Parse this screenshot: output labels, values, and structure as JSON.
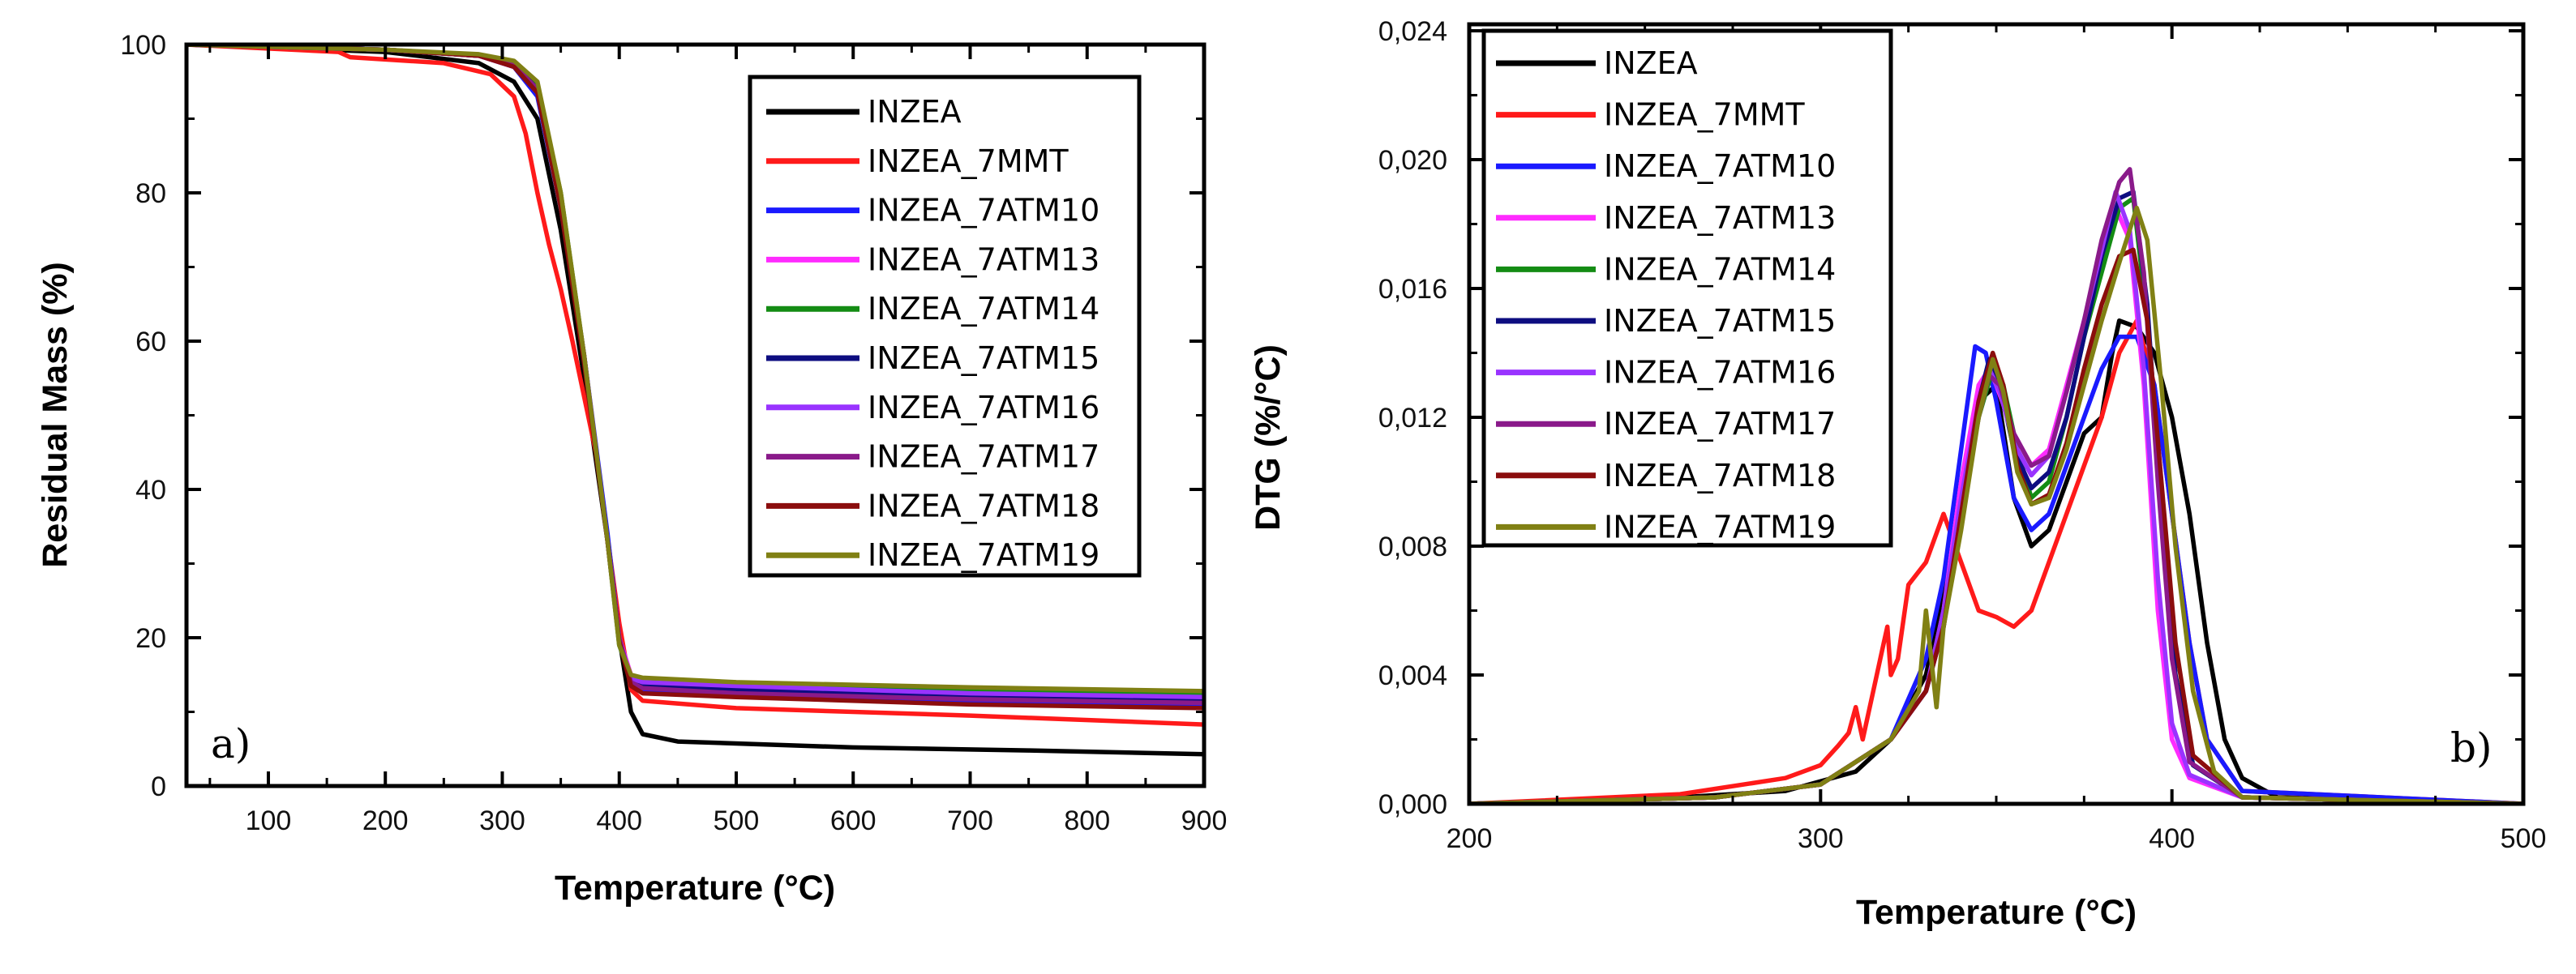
{
  "chart_data": [
    {
      "type": "line",
      "panel_label": "a)",
      "xlabel": "Temperature (°C)",
      "ylabel": "Residual Mass (%)",
      "xlim": [
        30,
        900
      ],
      "ylim": [
        0,
        100
      ],
      "x_ticks": [
        100,
        200,
        300,
        400,
        500,
        600,
        700,
        800,
        900
      ],
      "y_ticks": [
        0,
        20,
        40,
        60,
        80,
        100
      ],
      "legend_position": "top-right",
      "series": [
        {
          "name": "INZEA",
          "color": "#000000",
          "x": [
            30,
            200,
            280,
            310,
            330,
            350,
            370,
            390,
            400,
            410,
            420,
            450,
            600,
            750,
            900
          ],
          "y": [
            100,
            99,
            97.5,
            95,
            90,
            75,
            55,
            33,
            20,
            10,
            7,
            6,
            5.2,
            4.8,
            4.3
          ]
        },
        {
          "name": "INZEA_7MMT",
          "color": "#ff1a1a",
          "x": [
            30,
            160,
            170,
            250,
            290,
            310,
            320,
            330,
            340,
            350,
            360,
            380,
            400,
            410,
            420,
            500,
            700,
            900
          ],
          "y": [
            100,
            99,
            98.3,
            97.5,
            96,
            93,
            88,
            80,
            73,
            67,
            60,
            45,
            22,
            13,
            11.5,
            10.5,
            9.5,
            8.3
          ]
        },
        {
          "name": "INZEA_7ATM10",
          "color": "#1a1aff",
          "x": [
            30,
            200,
            280,
            310,
            330,
            350,
            370,
            390,
            400,
            410,
            420,
            500,
            700,
            900
          ],
          "y": [
            100,
            99.3,
            98.5,
            97,
            93,
            78,
            58,
            34,
            20,
            14,
            13,
            12.5,
            11.5,
            10.8
          ]
        },
        {
          "name": "INZEA_7ATM13",
          "color": "#ff2bff",
          "x": [
            30,
            200,
            280,
            310,
            330,
            350,
            370,
            390,
            400,
            410,
            420,
            500,
            700,
            900
          ],
          "y": [
            100,
            99.3,
            98.5,
            97,
            94,
            79,
            58,
            33,
            20,
            15,
            14,
            13.5,
            12.5,
            11.8
          ]
        },
        {
          "name": "INZEA_7ATM14",
          "color": "#148c14",
          "x": [
            30,
            200,
            280,
            310,
            330,
            350,
            370,
            390,
            400,
            410,
            420,
            500,
            700,
            900
          ],
          "y": [
            100,
            99.3,
            98.5,
            97.5,
            94.5,
            80,
            58,
            33,
            19,
            14.5,
            14,
            13.8,
            13,
            12.5
          ]
        },
        {
          "name": "INZEA_7ATM15",
          "color": "#0d0d80",
          "x": [
            30,
            200,
            280,
            310,
            330,
            350,
            370,
            390,
            400,
            410,
            420,
            500,
            700,
            900
          ],
          "y": [
            100,
            99.3,
            98.5,
            97.3,
            94,
            79,
            58,
            33,
            19.5,
            14,
            13.5,
            13,
            12,
            11.5
          ]
        },
        {
          "name": "INZEA_7ATM16",
          "color": "#9933ff",
          "x": [
            30,
            200,
            280,
            310,
            330,
            350,
            370,
            390,
            400,
            410,
            420,
            500,
            700,
            900
          ],
          "y": [
            100,
            99.3,
            98.5,
            97,
            94,
            79,
            58,
            33,
            20,
            14.5,
            14,
            13.5,
            12.5,
            12
          ]
        },
        {
          "name": "INZEA_7ATM17",
          "color": "#8a1a8a",
          "x": [
            30,
            200,
            280,
            310,
            330,
            350,
            370,
            390,
            400,
            410,
            420,
            500,
            700,
            900
          ],
          "y": [
            100,
            99.3,
            98.5,
            97.2,
            94,
            79,
            58,
            33,
            20,
            14,
            13.2,
            12.5,
            11.7,
            11.2
          ]
        },
        {
          "name": "INZEA_7ATM18",
          "color": "#8b0d0d",
          "x": [
            30,
            200,
            280,
            310,
            330,
            350,
            370,
            390,
            400,
            410,
            420,
            500,
            700,
            900
          ],
          "y": [
            100,
            99.3,
            98.5,
            97,
            93.5,
            78,
            57,
            33,
            19.5,
            13.5,
            12.5,
            12,
            11,
            10.5
          ]
        },
        {
          "name": "INZEA_7ATM19",
          "color": "#808014",
          "x": [
            30,
            200,
            280,
            310,
            330,
            350,
            370,
            390,
            400,
            410,
            420,
            500,
            700,
            900
          ],
          "y": [
            100,
            99.3,
            98.7,
            97.8,
            95,
            80,
            58,
            33,
            19,
            15,
            14.6,
            14,
            13.3,
            12.8
          ]
        }
      ]
    },
    {
      "type": "line",
      "panel_label": "b)",
      "xlabel": "Temperature (°C)",
      "ylabel": "DTG (%/°C)",
      "xlim": [
        200,
        500
      ],
      "ylim": [
        0,
        0.0242
      ],
      "x_ticks": [
        200,
        300,
        400,
        500
      ],
      "y_ticks": [
        0,
        0.004,
        0.008,
        0.012,
        0.016,
        0.02,
        0.024
      ],
      "y_tick_labels": [
        "0,000",
        "0,004",
        "0,008",
        "0,012",
        "0,016",
        "0,020",
        "0,024"
      ],
      "legend_position": "top-left",
      "series": [
        {
          "name": "INZEA",
          "color": "#000000",
          "x": [
            200,
            260,
            290,
            310,
            320,
            330,
            340,
            345,
            350,
            355,
            360,
            365,
            370,
            375,
            380,
            383,
            385,
            390,
            395,
            400,
            405,
            410,
            415,
            420,
            430,
            500
          ],
          "y": [
            0,
            0.0002,
            0.0004,
            0.001,
            0.002,
            0.004,
            0.009,
            0.0125,
            0.013,
            0.0095,
            0.008,
            0.0085,
            0.01,
            0.0115,
            0.012,
            0.014,
            0.015,
            0.0148,
            0.014,
            0.012,
            0.009,
            0.005,
            0.002,
            0.0008,
            0.0002,
            0
          ]
        },
        {
          "name": "INZEA_7MMT",
          "color": "#ff1a1a",
          "x": [
            200,
            260,
            290,
            300,
            305,
            308,
            310,
            312,
            315,
            318,
            319,
            320,
            322,
            325,
            330,
            335,
            340,
            345,
            350,
            355,
            360,
            370,
            380,
            385,
            390,
            395,
            400,
            405,
            410,
            420,
            500
          ],
          "y": [
            0,
            0.0003,
            0.0008,
            0.0012,
            0.0018,
            0.0022,
            0.003,
            0.002,
            0.0035,
            0.005,
            0.0055,
            0.004,
            0.0045,
            0.0068,
            0.0075,
            0.009,
            0.0075,
            0.006,
            0.0058,
            0.0055,
            0.006,
            0.009,
            0.012,
            0.014,
            0.015,
            0.013,
            0.009,
            0.005,
            0.002,
            0.0004,
            0
          ]
        },
        {
          "name": "INZEA_7ATM10",
          "color": "#1a1aff",
          "x": [
            200,
            270,
            300,
            320,
            330,
            335,
            340,
            344,
            347,
            350,
            355,
            360,
            365,
            370,
            375,
            380,
            385,
            390,
            395,
            400,
            405,
            410,
            420,
            500
          ],
          "y": [
            0,
            0.0002,
            0.0006,
            0.002,
            0.0045,
            0.007,
            0.011,
            0.0142,
            0.014,
            0.0125,
            0.0095,
            0.0085,
            0.009,
            0.0105,
            0.012,
            0.0135,
            0.0145,
            0.0145,
            0.013,
            0.009,
            0.005,
            0.002,
            0.0004,
            0
          ]
        },
        {
          "name": "INZEA_7ATM13",
          "color": "#ff2bff",
          "x": [
            200,
            270,
            300,
            320,
            330,
            335,
            340,
            345,
            348,
            350,
            355,
            360,
            365,
            370,
            375,
            380,
            384,
            388,
            392,
            396,
            400,
            405,
            420,
            500
          ],
          "y": [
            0,
            0.0002,
            0.0006,
            0.002,
            0.0035,
            0.006,
            0.01,
            0.013,
            0.0135,
            0.013,
            0.0115,
            0.0105,
            0.011,
            0.013,
            0.015,
            0.017,
            0.0185,
            0.0175,
            0.013,
            0.006,
            0.002,
            0.0008,
            0.0002,
            0
          ]
        },
        {
          "name": "INZEA_7ATM14",
          "color": "#148c14",
          "x": [
            200,
            270,
            300,
            320,
            330,
            335,
            340,
            345,
            349,
            352,
            356,
            360,
            365,
            370,
            375,
            380,
            385,
            389,
            393,
            397,
            401,
            406,
            420,
            500
          ],
          "y": [
            0,
            0.0002,
            0.0006,
            0.002,
            0.0035,
            0.0055,
            0.009,
            0.012,
            0.0135,
            0.013,
            0.011,
            0.0095,
            0.01,
            0.012,
            0.0145,
            0.0165,
            0.0185,
            0.0188,
            0.015,
            0.009,
            0.004,
            0.0012,
            0.0002,
            0
          ]
        },
        {
          "name": "INZEA_7ATM15",
          "color": "#0d0d80",
          "x": [
            200,
            270,
            300,
            320,
            330,
            335,
            340,
            345,
            348,
            351,
            355,
            360,
            365,
            370,
            375,
            380,
            385,
            389,
            393,
            397,
            401,
            406,
            420,
            500
          ],
          "y": [
            0,
            0.0002,
            0.0006,
            0.002,
            0.0035,
            0.0055,
            0.009,
            0.0125,
            0.0138,
            0.013,
            0.011,
            0.0098,
            0.0103,
            0.012,
            0.0145,
            0.017,
            0.0188,
            0.019,
            0.0155,
            0.009,
            0.004,
            0.0012,
            0.0002,
            0
          ]
        },
        {
          "name": "INZEA_7ATM16",
          "color": "#9933ff",
          "x": [
            200,
            270,
            300,
            320,
            330,
            335,
            340,
            345,
            348,
            351,
            355,
            360,
            365,
            370,
            375,
            380,
            384,
            388,
            392,
            396,
            400,
            405,
            420,
            500
          ],
          "y": [
            0,
            0.0002,
            0.0006,
            0.002,
            0.0035,
            0.006,
            0.0095,
            0.0125,
            0.0135,
            0.0128,
            0.0112,
            0.0102,
            0.0108,
            0.0128,
            0.015,
            0.0172,
            0.019,
            0.0178,
            0.0135,
            0.007,
            0.0025,
            0.0009,
            0.0002,
            0
          ]
        },
        {
          "name": "INZEA_7ATM17",
          "color": "#8a1a8a",
          "x": [
            200,
            270,
            300,
            320,
            330,
            335,
            340,
            345,
            348,
            351,
            355,
            360,
            365,
            370,
            375,
            380,
            385,
            388,
            392,
            396,
            400,
            405,
            420,
            500
          ],
          "y": [
            0,
            0.0002,
            0.0006,
            0.002,
            0.0035,
            0.0055,
            0.009,
            0.012,
            0.0133,
            0.013,
            0.0115,
            0.0105,
            0.0108,
            0.0128,
            0.015,
            0.0175,
            0.0193,
            0.0197,
            0.0165,
            0.01,
            0.0045,
            0.0013,
            0.0002,
            0
          ]
        },
        {
          "name": "INZEA_7ATM18",
          "color": "#8b0d0d",
          "x": [
            200,
            270,
            300,
            320,
            330,
            335,
            340,
            345,
            349,
            352,
            356,
            360,
            365,
            370,
            375,
            380,
            385,
            389,
            393,
            397,
            401,
            406,
            420,
            500
          ],
          "y": [
            0,
            0.0002,
            0.0006,
            0.002,
            0.0035,
            0.0055,
            0.009,
            0.0125,
            0.014,
            0.013,
            0.0105,
            0.0093,
            0.0096,
            0.0112,
            0.0135,
            0.0155,
            0.017,
            0.0172,
            0.015,
            0.01,
            0.005,
            0.0015,
            0.0002,
            0
          ]
        },
        {
          "name": "INZEA_7ATM19",
          "color": "#808014",
          "x": [
            200,
            270,
            300,
            320,
            328,
            330,
            333,
            335,
            340,
            345,
            349,
            352,
            356,
            360,
            365,
            370,
            375,
            380,
            385,
            390,
            393,
            397,
            401,
            406,
            412,
            420,
            500
          ],
          "y": [
            0,
            0.0002,
            0.0006,
            0.002,
            0.0035,
            0.006,
            0.003,
            0.0055,
            0.0085,
            0.012,
            0.0138,
            0.0128,
            0.0103,
            0.0093,
            0.0095,
            0.011,
            0.013,
            0.015,
            0.0168,
            0.0185,
            0.0175,
            0.013,
            0.008,
            0.0035,
            0.001,
            0.0002,
            0
          ]
        }
      ]
    }
  ]
}
